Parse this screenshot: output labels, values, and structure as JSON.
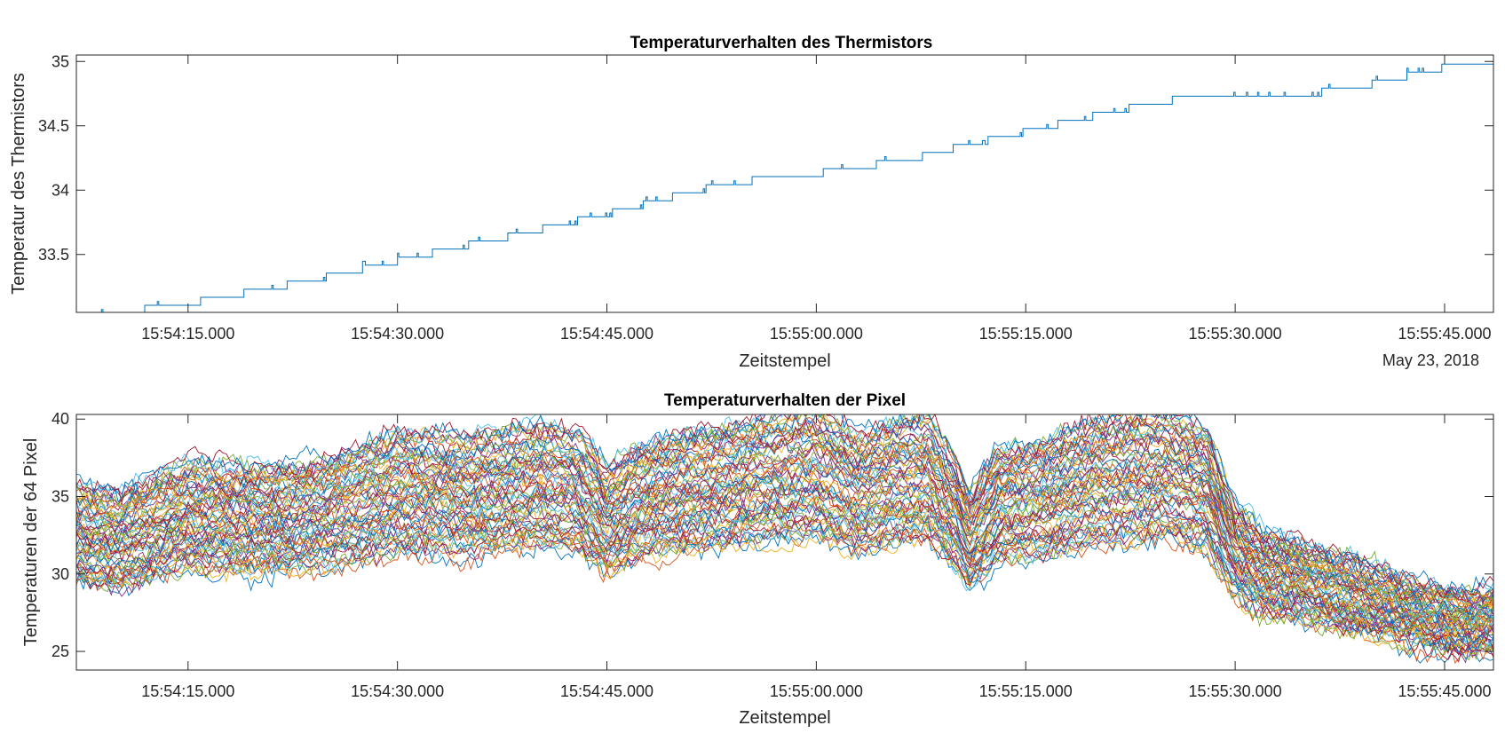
{
  "chart_data": [
    {
      "type": "line",
      "title": "Temperaturverhalten des Thermistors",
      "xlabel": "Zeitstempel",
      "ylabel": "Temperatur des Thermistors",
      "date_label": "May 23, 2018",
      "x_range": [
        "15:54:07.000",
        "15:55:48.500"
      ],
      "x_ticks": [
        "15:54:15.000",
        "15:54:30.000",
        "15:54:45.000",
        "15:55:00.000",
        "15:55:15.000",
        "15:55:30.000",
        "15:55:45.000"
      ],
      "ylim": [
        33.05,
        35.05
      ],
      "y_ticks": [
        "33.5",
        "34",
        "34.5",
        "35"
      ],
      "grid": false,
      "series_color": "#0072BD",
      "series": [
        {
          "name": "",
          "x_seconds_after_15_54_00": [
            7.0,
            10.0,
            14.0,
            18.0,
            22.0,
            26.0,
            30.0,
            34.0,
            38.0,
            42.0,
            46.0,
            50.0,
            54.0,
            58.0,
            62.0,
            66.0,
            68.0,
            70.0,
            74.0,
            78.0,
            82.0,
            86.0,
            88.0,
            90.0,
            92.0,
            94.0,
            98.0,
            100.0,
            102.0,
            104.0,
            106.0,
            108.5
          ],
          "values": [
            33.05,
            33.07,
            33.12,
            33.2,
            33.28,
            33.37,
            33.47,
            33.57,
            33.66,
            33.76,
            33.86,
            33.98,
            34.08,
            34.12,
            34.18,
            34.25,
            34.29,
            34.35,
            34.45,
            34.55,
            34.65,
            34.73,
            34.75,
            34.72,
            34.74,
            34.76,
            34.8,
            34.85,
            34.9,
            34.95,
            35.0,
            35.03
          ]
        }
      ]
    },
    {
      "type": "line",
      "title": "Temperaturverhalten der Pixel",
      "xlabel": "Zeitstempel",
      "ylabel": "Temperaturen der 64 Pixel",
      "x_range": [
        "15:54:07.000",
        "15:55:48.500"
      ],
      "x_ticks": [
        "15:54:15.000",
        "15:54:30.000",
        "15:54:45.000",
        "15:55:00.000",
        "15:55:15.000",
        "15:55:30.000",
        "15:55:45.000"
      ],
      "ylim": [
        23.8,
        40.3
      ],
      "y_ticks": [
        "25",
        "30",
        "35",
        "40"
      ],
      "grid": false,
      "series_count": 64,
      "colors": [
        "#0072BD",
        "#D95319",
        "#EDB120",
        "#7E2F8E",
        "#77AC30",
        "#4DBEEE",
        "#A2142F"
      ],
      "mean_profile": {
        "x_seconds_after_15_54_00": [
          7.0,
          10.0,
          15.0,
          20.0,
          25.0,
          30.0,
          35.0,
          40.0,
          43.0,
          45.0,
          47.0,
          50.0,
          55.0,
          60.0,
          63.0,
          66.0,
          68.0,
          70.0,
          71.0,
          73.0,
          76.0,
          80.0,
          85.0,
          88.0,
          90.0,
          92.0,
          95.0,
          100.0,
          104.0,
          107.0,
          108.5
        ],
        "values": [
          32.5,
          32.2,
          33.8,
          33.5,
          34.0,
          35.4,
          35.1,
          35.8,
          35.4,
          33.4,
          34.5,
          35.2,
          36.0,
          36.6,
          35.2,
          36.0,
          36.2,
          34.0,
          32.2,
          34.5,
          34.8,
          36.0,
          36.5,
          35.5,
          31.5,
          30.0,
          29.5,
          28.3,
          27.2,
          26.8,
          27.0
        ]
      },
      "spread_range": [
        2.0,
        6.5
      ]
    }
  ]
}
